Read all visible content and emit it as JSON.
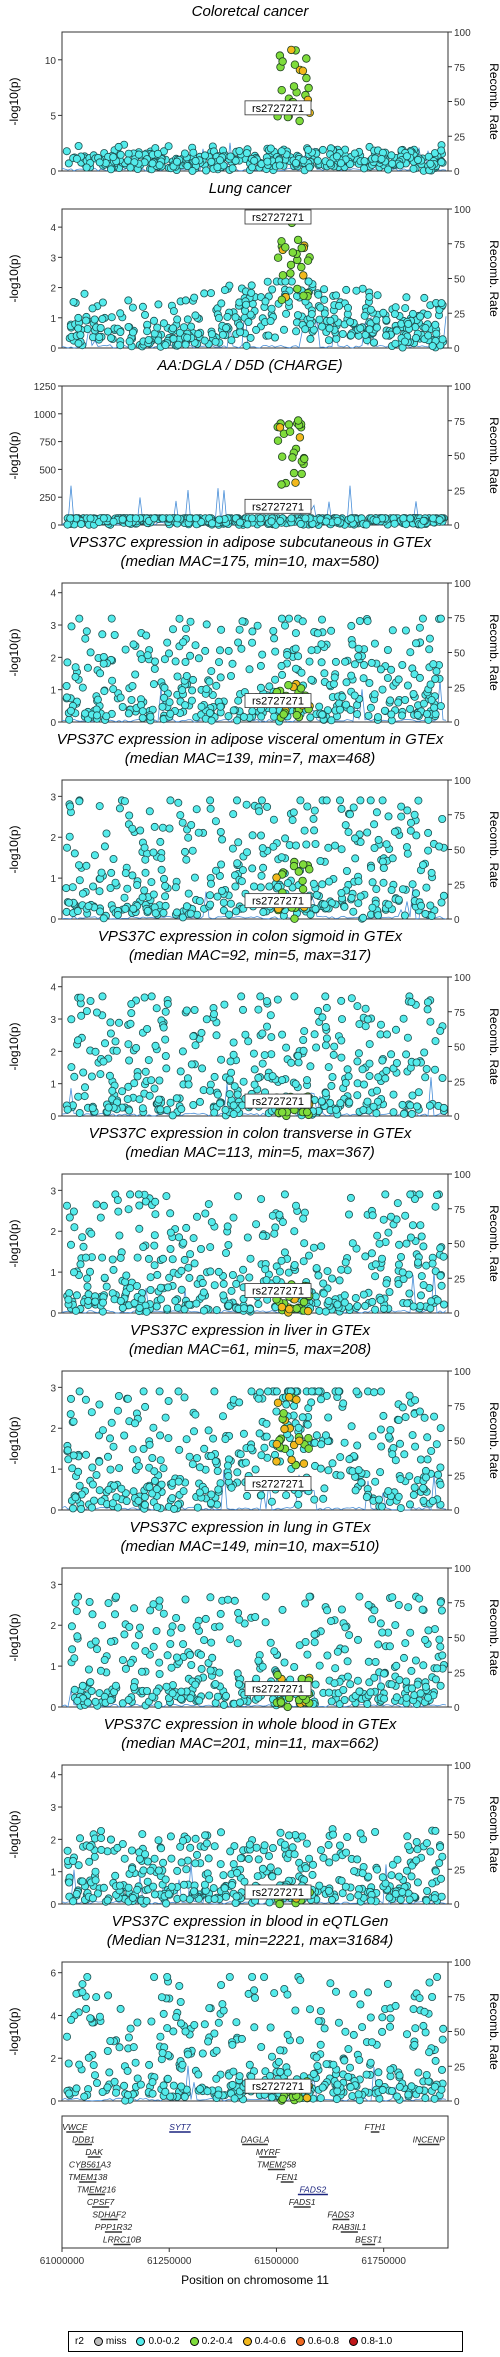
{
  "chart_data": [
    {
      "type": "scatter",
      "title_lines": [
        "Coloretcal cancer"
      ],
      "ylabel": "-log10(p)",
      "ylabel2": "Recomb. Rate",
      "yticks": [
        0,
        5,
        10
      ],
      "ylim": [
        0,
        12.5
      ],
      "y2ticks": [
        0,
        25,
        50,
        75,
        100
      ],
      "lead_snp": "rs2727271",
      "lead_y": 5.5,
      "peak_max": 11,
      "background_max": 2.5,
      "noise": 0.6,
      "peak_style": "tall"
    },
    {
      "type": "scatter",
      "title_lines": [
        "Lung cancer"
      ],
      "ylabel": "-log10(p)",
      "ylabel2": "Recomb. Rate",
      "yticks": [
        0,
        1,
        2,
        3,
        4
      ],
      "ylim": [
        0,
        4.6
      ],
      "y2ticks": [
        0,
        25,
        50,
        75,
        100
      ],
      "lead_snp": "rs2727271",
      "lead_y": 4.3,
      "peak_max": 4.3,
      "background_max": 2.2,
      "noise": 0.7,
      "peak_style": "mound"
    },
    {
      "type": "scatter",
      "title_lines": [
        "AA:DGLA / D5D (CHARGE)"
      ],
      "ylabel": "-log10(p)",
      "ylabel2": "Recomb. Rate",
      "yticks": [
        0,
        250,
        500,
        750,
        1000,
        1250
      ],
      "ylim": [
        0,
        1250
      ],
      "y2ticks": [
        0,
        25,
        50,
        75,
        100
      ],
      "lead_snp": "rs2727271",
      "lead_y": 150,
      "peak_max": 1000,
      "background_max": 60,
      "noise": 0.1,
      "peak_style": "tall"
    },
    {
      "type": "scatter",
      "title_lines": [
        "VPS37C expression in adipose subcutaneous in GTEx",
        "(median MAC=175, min=10, max=580)"
      ],
      "ylabel": "-log10(p)",
      "ylabel2": "Recomb. Rate",
      "yticks": [
        0,
        1,
        2,
        3,
        4
      ],
      "ylim": [
        0,
        4.3
      ],
      "y2ticks": [
        0,
        25,
        50,
        75,
        100
      ],
      "lead_snp": "rs2727271",
      "lead_y": 0.6,
      "peak_max": 1.2,
      "background_max": 3.2,
      "noise": 1,
      "peak_style": "flat"
    },
    {
      "type": "scatter",
      "title_lines": [
        "VPS37C expression in adipose visceral omentum in GTEx",
        "(median MAC=139, min=7, max=468)"
      ],
      "ylabel": "-log10(p)",
      "ylabel2": "Recomb. Rate",
      "yticks": [
        0,
        1,
        2,
        3
      ],
      "ylim": [
        0,
        3.4
      ],
      "y2ticks": [
        0,
        25,
        50,
        75,
        100
      ],
      "lead_snp": "rs2727271",
      "lead_y": 0.4,
      "peak_max": 1.5,
      "background_max": 2.9,
      "noise": 1,
      "peak_style": "flat"
    },
    {
      "type": "scatter",
      "title_lines": [
        "VPS37C expression in colon sigmoid in GTEx",
        "(median MAC=92, min=5, max=317)"
      ],
      "ylabel": "-log10(p)",
      "ylabel2": "Recomb. Rate",
      "yticks": [
        0,
        1,
        2,
        3,
        4
      ],
      "ylim": [
        0,
        4.3
      ],
      "y2ticks": [
        0,
        25,
        50,
        75,
        100
      ],
      "lead_snp": "rs2727271",
      "lead_y": 0.4,
      "peak_max": 0.6,
      "background_max": 3.7,
      "noise": 1,
      "peak_style": "flat"
    },
    {
      "type": "scatter",
      "title_lines": [
        "VPS37C expression in colon transverse in GTEx",
        "(median MAC=113, min=5, max=367)"
      ],
      "ylabel": "-log10(p)",
      "ylabel2": "Recomb. Rate",
      "yticks": [
        0,
        1,
        2,
        3
      ],
      "ylim": [
        0,
        3.4
      ],
      "y2ticks": [
        0,
        25,
        50,
        75,
        100
      ],
      "lead_snp": "rs2727271",
      "lead_y": 0.5,
      "peak_max": 0.7,
      "background_max": 2.9,
      "noise": 1,
      "peak_style": "flat"
    },
    {
      "type": "scatter",
      "title_lines": [
        "VPS37C expression in liver in GTEx",
        "(median MAC=61, min=5, max=208)"
      ],
      "ylabel": "-log10(p)",
      "ylabel2": "Recomb. Rate",
      "yticks": [
        0,
        1,
        2,
        3
      ],
      "ylim": [
        0,
        3.4
      ],
      "y2ticks": [
        0,
        25,
        50,
        75,
        100
      ],
      "lead_snp": "rs2727271",
      "lead_y": 0.6,
      "peak_max": 2.8,
      "background_max": 2.9,
      "noise": 1,
      "peak_style": "mound"
    },
    {
      "type": "scatter",
      "title_lines": [
        "VPS37C expression in lung in GTEx",
        "(median MAC=149, min=10, max=510)"
      ],
      "ylabel": "-log10(p)",
      "ylabel2": "Recomb. Rate",
      "yticks": [
        0,
        1,
        2,
        3
      ],
      "ylim": [
        0,
        3.4
      ],
      "y2ticks": [
        0,
        25,
        50,
        75,
        100
      ],
      "lead_snp": "rs2727271",
      "lead_y": 0.4,
      "peak_max": 0.8,
      "background_max": 2.7,
      "noise": 1,
      "peak_style": "flat"
    },
    {
      "type": "scatter",
      "title_lines": [
        "VPS37C expression in whole blood in GTEx",
        "(median MAC=201, min=11, max=662)"
      ],
      "ylabel": "-log10(p)",
      "ylabel2": "Recomb. Rate",
      "yticks": [
        0,
        1,
        2,
        3,
        4
      ],
      "ylim": [
        0,
        4.3
      ],
      "y2ticks": [
        0,
        25,
        50,
        75,
        100
      ],
      "lead_snp": "rs2727271",
      "lead_y": 0.3,
      "peak_max": 0.5,
      "background_max": 2.6,
      "noise": 0.8,
      "peak_style": "flat"
    },
    {
      "type": "scatter",
      "title_lines": [
        "VPS37C expression in blood in eQTLGen",
        "(Median N=31231, min=2221, max=31684)"
      ],
      "ylabel": "-log10(p)",
      "ylabel2": "Recomb. Rate",
      "yticks": [
        0,
        2,
        4,
        6
      ],
      "ylim": [
        0,
        6.5
      ],
      "y2ticks": [
        0,
        25,
        50,
        75,
        100
      ],
      "lead_snp": "rs2727271",
      "lead_y": 0.6,
      "peak_max": 1.0,
      "background_max": 5.8,
      "noise": 1,
      "peak_style": "flat"
    }
  ],
  "genes_track": {
    "xlabel": "Position on chromosome 11",
    "xticks": [
      "61000000",
      "61250000",
      "61500000",
      "61750000"
    ],
    "xrange": [
      61000000,
      61900000
    ],
    "genes": [
      {
        "name": "VWCE",
        "start": 61010000,
        "end": 61050000,
        "row": 0,
        "highlight": false
      },
      {
        "name": "SYT7",
        "start": 61250000,
        "end": 61300000,
        "row": 0,
        "highlight": true
      },
      {
        "name": "DAGLA",
        "start": 61420000,
        "end": 61480000,
        "row": 1,
        "highlight": false
      },
      {
        "name": "FTH1",
        "start": 61720000,
        "end": 61740000,
        "row": 0,
        "highlight": false
      },
      {
        "name": "INCENP",
        "start": 61830000,
        "end": 61880000,
        "row": 1,
        "highlight": false
      },
      {
        "name": "DDB1",
        "start": 61030000,
        "end": 61070000,
        "row": 1,
        "highlight": false
      },
      {
        "name": "DAK",
        "start": 61060000,
        "end": 61090000,
        "row": 2,
        "highlight": false
      },
      {
        "name": "CYB561A3",
        "start": 61040000,
        "end": 61090000,
        "row": 3,
        "highlight": false
      },
      {
        "name": "TMEM138",
        "start": 61040000,
        "end": 61080000,
        "row": 4,
        "highlight": false
      },
      {
        "name": "TMEM216",
        "start": 61060000,
        "end": 61100000,
        "row": 5,
        "highlight": false
      },
      {
        "name": "CPSF7",
        "start": 61070000,
        "end": 61110000,
        "row": 6,
        "highlight": false
      },
      {
        "name": "SDHAF2",
        "start": 61090000,
        "end": 61130000,
        "row": 7,
        "highlight": false
      },
      {
        "name": "PPP1R32",
        "start": 61100000,
        "end": 61140000,
        "row": 8,
        "highlight": false
      },
      {
        "name": "LRRC10B",
        "start": 61120000,
        "end": 61160000,
        "row": 9,
        "highlight": false
      },
      {
        "name": "MYRF",
        "start": 61460000,
        "end": 61500000,
        "row": 2,
        "highlight": false
      },
      {
        "name": "TMEM258",
        "start": 61480000,
        "end": 61520000,
        "row": 3,
        "highlight": false
      },
      {
        "name": "FEN1",
        "start": 61510000,
        "end": 61540000,
        "row": 4,
        "highlight": false
      },
      {
        "name": "FADS2",
        "start": 61550000,
        "end": 61620000,
        "row": 5,
        "highlight": true
      },
      {
        "name": "FADS1",
        "start": 61540000,
        "end": 61580000,
        "row": 6,
        "highlight": false
      },
      {
        "name": "FADS3",
        "start": 61630000,
        "end": 61670000,
        "row": 7,
        "highlight": false
      },
      {
        "name": "RAB3IL1",
        "start": 61650000,
        "end": 61690000,
        "row": 8,
        "highlight": false
      },
      {
        "name": "BEST1",
        "start": 61700000,
        "end": 61730000,
        "row": 9,
        "highlight": false
      }
    ]
  },
  "legend": {
    "title": "r2",
    "items": [
      {
        "label": "miss",
        "color": "#bdbdbd"
      },
      {
        "label": "0.0-0.2",
        "color": "#53ebeb"
      },
      {
        "label": "0.2-0.4",
        "color": "#7fdc3c"
      },
      {
        "label": "0.4-0.6",
        "color": "#f2b81d"
      },
      {
        "label": "0.6-0.8",
        "color": "#f06a22"
      },
      {
        "label": "0.8-1.0",
        "color": "#c0171a"
      }
    ]
  },
  "colors": {
    "lead": "#9b30ff",
    "cyan": "#53ebeb",
    "green": "#7fdc3c",
    "recomb": "#4a8fd8"
  }
}
